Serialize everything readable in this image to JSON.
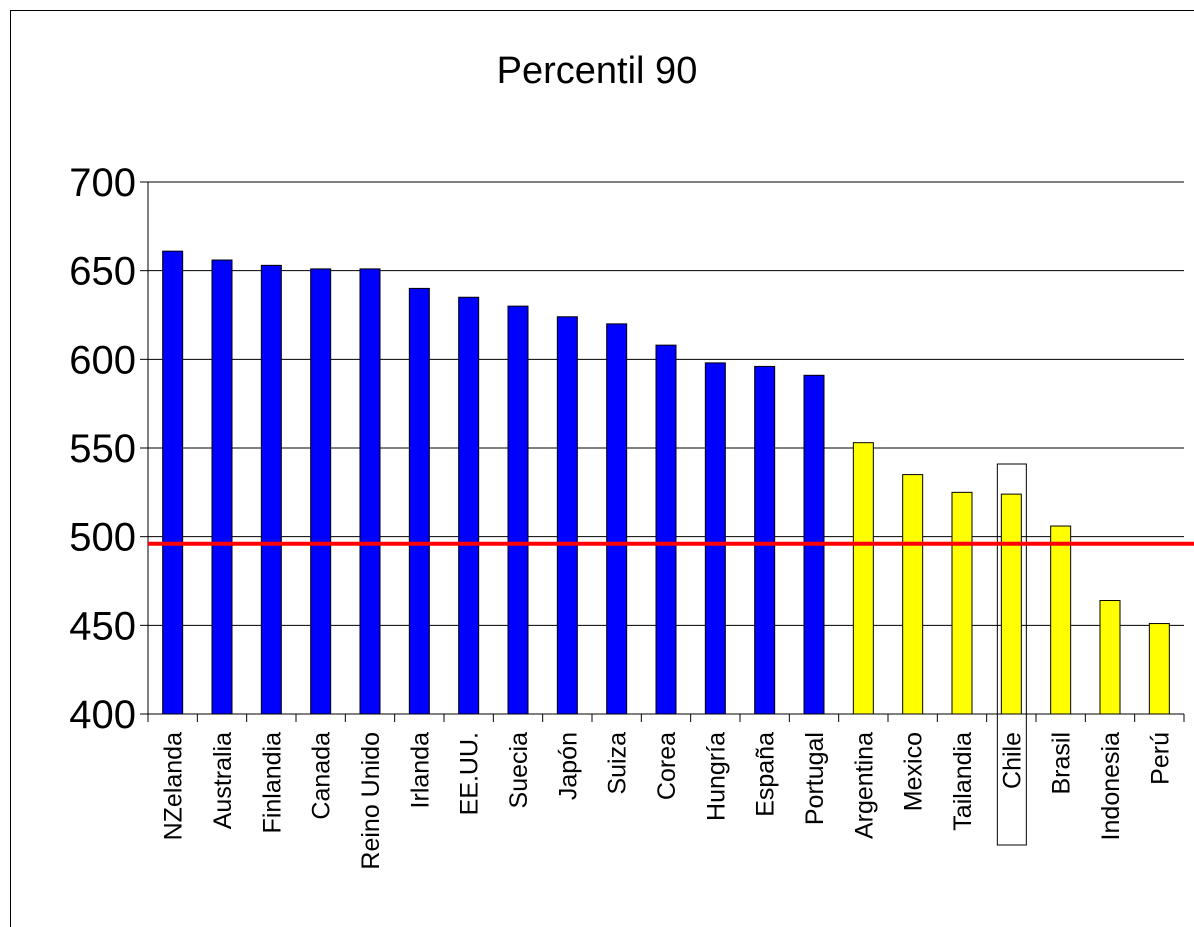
{
  "chart_data": {
    "type": "bar",
    "title": "Percentil 90",
    "categories": [
      "NZelanda",
      "Australia",
      "Finlandia",
      "Canada",
      "Reino Unido",
      "Irlanda",
      "EE.UU.",
      "Suecia",
      "Japón",
      "Suiza",
      "Corea",
      "Hungría",
      "España",
      "Portugal",
      "Argentina",
      "Mexico",
      "Tailandia",
      "Chile",
      "Brasil",
      "Indonesia",
      "Perú"
    ],
    "values": [
      661,
      656,
      653,
      651,
      651,
      640,
      635,
      630,
      624,
      620,
      608,
      598,
      596,
      591,
      553,
      535,
      525,
      524,
      506,
      464,
      451
    ],
    "bar_colors": [
      "#0000ff",
      "#0000ff",
      "#0000ff",
      "#0000ff",
      "#0000ff",
      "#0000ff",
      "#0000ff",
      "#0000ff",
      "#0000ff",
      "#0000ff",
      "#0000ff",
      "#0000ff",
      "#0000ff",
      "#0000ff",
      "#ffff00",
      "#ffff00",
      "#ffff00",
      "#ffff00",
      "#ffff00",
      "#ffff00",
      "#ffff00"
    ],
    "ylim": [
      400,
      700
    ],
    "yticks": [
      400,
      450,
      500,
      550,
      600,
      650,
      700
    ],
    "reference_line": {
      "value": 496,
      "color": "#ff0000"
    },
    "highlighted_category": "Chile",
    "grid": true,
    "xlabel": "",
    "ylabel": ""
  }
}
